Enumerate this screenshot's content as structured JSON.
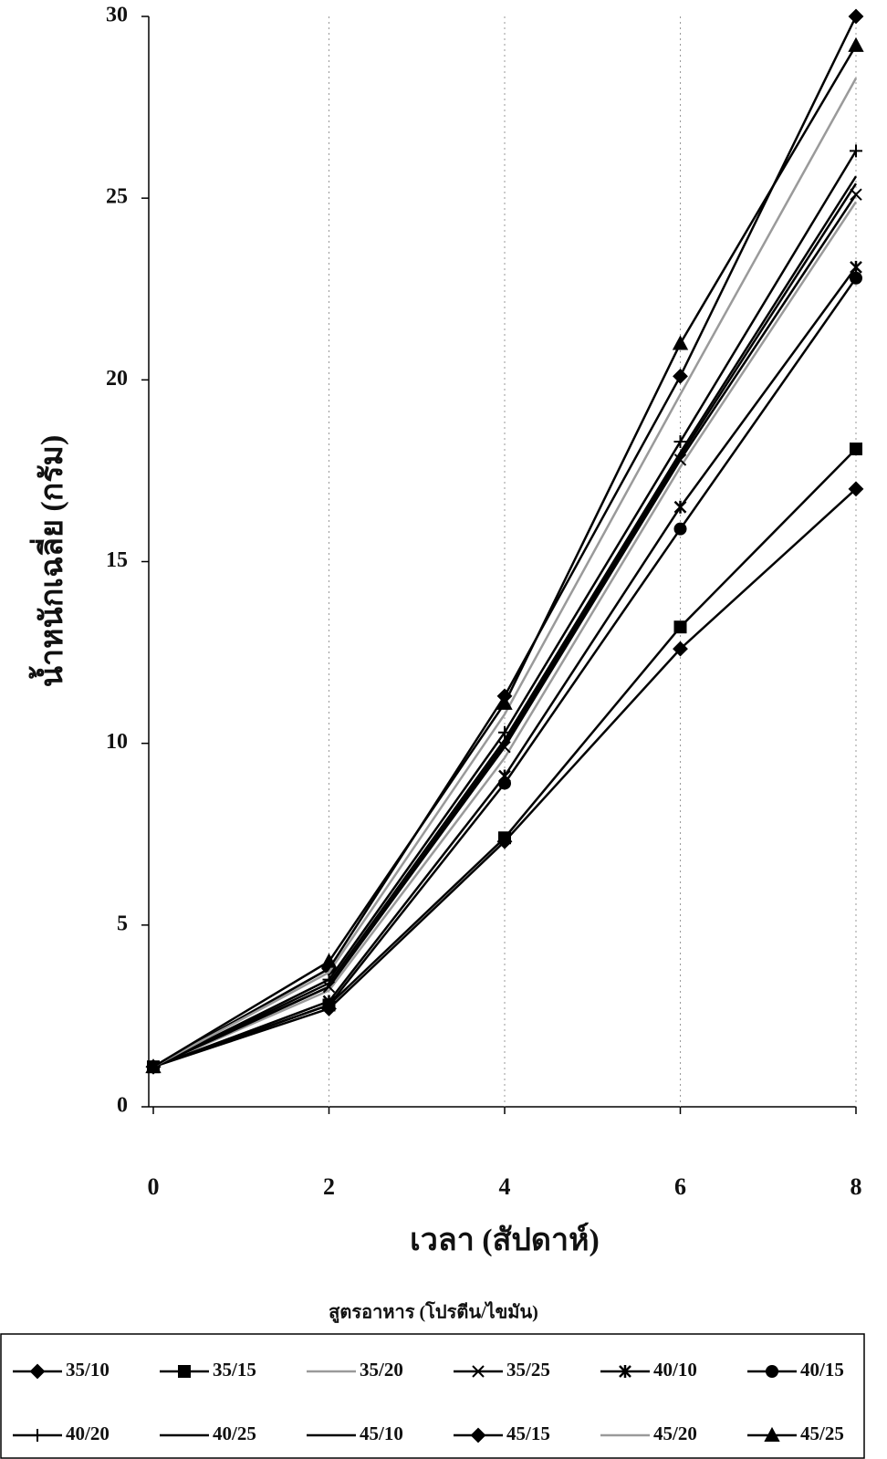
{
  "chart_data": {
    "type": "line",
    "x_label": "เวลา (สัปดาห์)",
    "y_label": "น้ำหนักเฉลี่ย (กรัม)",
    "legend_title": "สูตรอาหาร (โปรตีน/ไขมัน)",
    "x": [
      0,
      2,
      4,
      6,
      8
    ],
    "xlim": [
      0,
      8
    ],
    "xticks": [
      0,
      2,
      4,
      6,
      8
    ],
    "ylim": [
      0,
      30
    ],
    "yticks": [
      0,
      5,
      10,
      15,
      20,
      25,
      30
    ],
    "grid": true,
    "legend": "bottom",
    "series": [
      {
        "name": "35/10",
        "color": "#000000",
        "marker": "diamond",
        "values": [
          1.1,
          2.7,
          7.3,
          12.6,
          17.0
        ]
      },
      {
        "name": "35/15",
        "color": "#000000",
        "marker": "square",
        "values": [
          1.1,
          2.8,
          7.4,
          13.2,
          18.1
        ]
      },
      {
        "name": "35/20",
        "color": "#9a9a9a",
        "marker": "none",
        "values": [
          1.1,
          3.2,
          9.6,
          17.6,
          24.9
        ]
      },
      {
        "name": "35/25",
        "color": "#000000",
        "marker": "x",
        "values": [
          1.1,
          3.3,
          9.9,
          17.8,
          25.1
        ]
      },
      {
        "name": "40/10",
        "color": "#000000",
        "marker": "star",
        "values": [
          1.1,
          2.9,
          9.1,
          16.5,
          23.1
        ]
      },
      {
        "name": "40/15",
        "color": "#000000",
        "marker": "circle",
        "values": [
          1.1,
          2.8,
          8.9,
          15.9,
          22.8
        ]
      },
      {
        "name": "40/20",
        "color": "#000000",
        "marker": "plus",
        "values": [
          1.1,
          3.5,
          10.3,
          18.3,
          26.3
        ]
      },
      {
        "name": "40/25",
        "color": "#000000",
        "marker": "none",
        "values": [
          1.1,
          3.4,
          10.1,
          18.0,
          25.6
        ]
      },
      {
        "name": "45/10",
        "color": "#000000",
        "marker": "none",
        "values": [
          1.1,
          3.3,
          10.0,
          17.9,
          25.4
        ]
      },
      {
        "name": "45/15",
        "color": "#000000",
        "marker": "diamond",
        "values": [
          1.1,
          3.8,
          11.3,
          20.1,
          30.0
        ]
      },
      {
        "name": "45/20",
        "color": "#9a9a9a",
        "marker": "none",
        "values": [
          1.1,
          3.7,
          10.8,
          19.6,
          28.3
        ]
      },
      {
        "name": "45/25",
        "color": "#000000",
        "marker": "triangle",
        "values": [
          1.1,
          4.0,
          11.1,
          21.0,
          29.2
        ]
      }
    ]
  }
}
